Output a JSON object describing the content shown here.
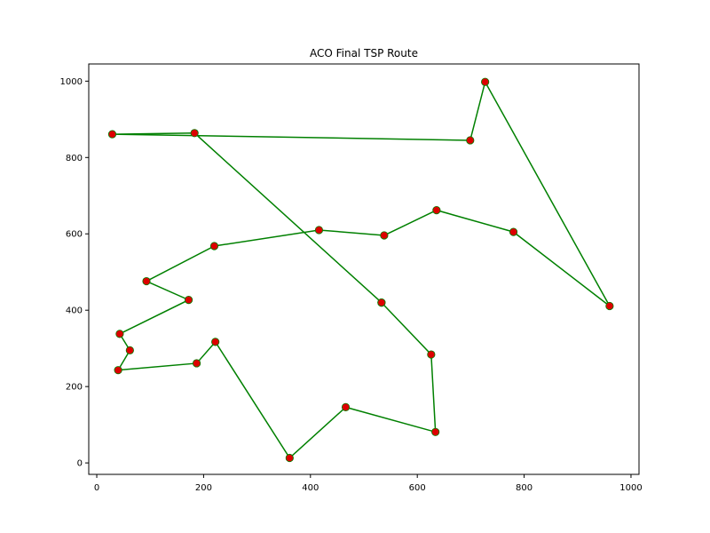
{
  "chart_data": {
    "type": "line",
    "title": "ACO Final TSP Route",
    "xlabel": "",
    "ylabel": "",
    "xlim": [
      -15,
      1015
    ],
    "ylim": [
      -30,
      1045
    ],
    "xticks": [
      0,
      200,
      400,
      600,
      800,
      1000
    ],
    "yticks": [
      0,
      200,
      400,
      600,
      800,
      1000
    ],
    "grid": false,
    "series": [
      {
        "marker_color": "#dd0000",
        "marker_edge_color": "#008000",
        "line_color": "#008000",
        "points": [
          [
            533,
            420
          ],
          [
            626,
            284
          ],
          [
            634,
            81
          ],
          [
            466,
            146
          ],
          [
            361,
            13
          ],
          [
            222,
            317
          ],
          [
            187,
            261
          ],
          [
            40,
            243
          ],
          [
            62,
            295
          ],
          [
            43,
            338
          ],
          [
            172,
            427
          ],
          [
            93,
            476
          ],
          [
            220,
            568
          ],
          [
            416,
            610
          ],
          [
            538,
            596
          ],
          [
            636,
            662
          ],
          [
            780,
            605
          ],
          [
            960,
            411
          ],
          [
            727,
            998
          ],
          [
            699,
            845
          ],
          [
            29,
            861
          ],
          [
            183,
            864
          ],
          [
            533,
            420
          ]
        ]
      }
    ]
  }
}
